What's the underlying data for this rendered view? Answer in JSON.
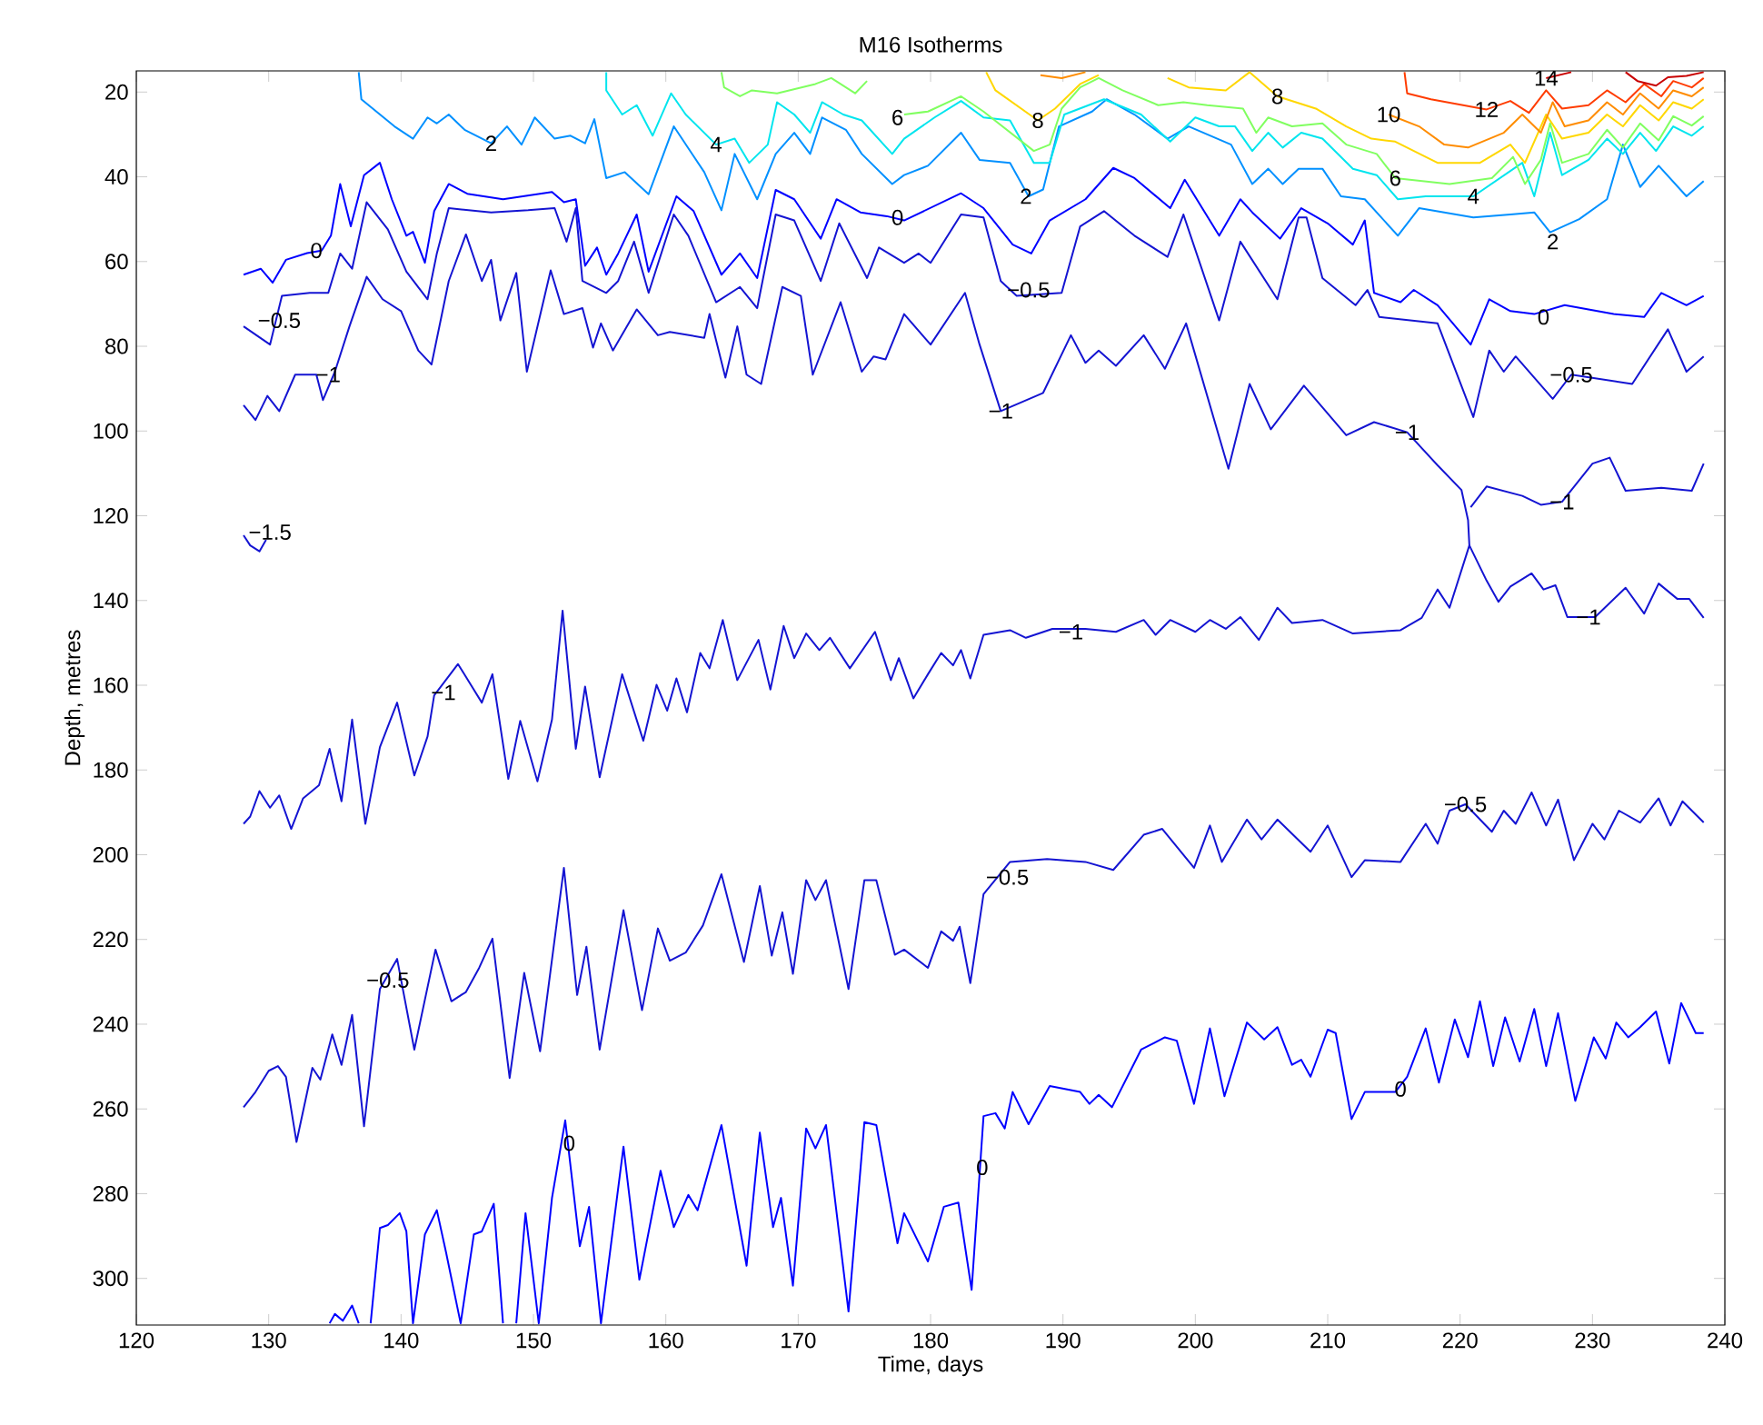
{
  "chart_data": {
    "type": "line",
    "title": "M16 Isotherms",
    "xlabel": "Time, days",
    "ylabel": "Depth, metres",
    "xlim": [
      120,
      240
    ],
    "xticks": [
      120,
      130,
      140,
      150,
      160,
      170,
      180,
      190,
      200,
      210,
      220,
      230,
      240
    ],
    "ylim": [
      311,
      15
    ],
    "yticks": [
      20,
      40,
      60,
      80,
      100,
      120,
      140,
      160,
      180,
      200,
      220,
      240,
      260,
      280,
      300
    ],
    "series": [
      {
        "color": "#0000ff",
        "x": [
          128.1,
          129.4,
          130.3,
          131.3,
          132.9,
          134,
          134.7,
          135.4,
          136.2,
          137.2,
          138.4,
          139.3,
          140.4,
          140.9,
          141.8,
          142.5,
          143.6,
          145,
          147.7,
          151.4,
          152.3,
          153.2,
          153.9,
          154.8,
          155.5,
          156.4,
          157.8,
          158.7,
          160.8,
          162.1,
          164.2,
          165.6,
          166.9,
          168.3,
          169.7,
          171.7,
          172.9,
          174.7,
          176.7,
          178,
          182.3,
          184,
          186.2,
          187.6,
          189,
          191.7,
          193.8,
          195.4,
          198.1,
          199.2,
          201.8,
          203.4,
          204.3,
          206.4,
          208,
          210,
          211.9,
          212.8,
          213.5,
          215.5,
          216.5,
          218.3,
          220.8,
          222.2,
          223.8,
          225.6,
          227.9,
          231.6,
          233.9,
          235.2,
          237.1,
          238.4
        ],
        "values": [
          63.1,
          61.7,
          65,
          59.6,
          58,
          57.4,
          53.9,
          41.7,
          51.7,
          39.6,
          36.7,
          45.3,
          53.9,
          53,
          60.3,
          48.1,
          41.7,
          44,
          45.3,
          43.6,
          46,
          45.3,
          61,
          56.7,
          63.1,
          58.1,
          48.9,
          62.4,
          44.6,
          48.1,
          63.1,
          58.1,
          63.9,
          43.1,
          45.3,
          54.6,
          45.3,
          48.4,
          49.3,
          50.3,
          43.9,
          47.4,
          56,
          58.1,
          50.3,
          45.3,
          37.9,
          40.3,
          47.4,
          40.7,
          53.9,
          45.3,
          48.4,
          54.6,
          47.4,
          51,
          56,
          50.3,
          67.4,
          69.6,
          66.7,
          70.3,
          79.6,
          68.9,
          71.7,
          72.4,
          70.3,
          72.4,
          73.1,
          67.4,
          70.3,
          68.1
        ]
      },
      {
        "color": "#1414d2",
        "x": [
          128.1,
          130.1,
          131,
          133.1,
          134.5,
          135.4,
          136.3,
          137.4,
          139,
          140.4,
          142,
          142.7,
          143.6,
          146.8,
          149.6,
          151.6,
          152.5,
          153.2,
          153.7,
          155.5,
          156.4,
          157.6,
          158.7,
          160.6,
          161.7,
          163.8,
          165.6,
          166.9,
          168.3,
          169.7,
          171.7,
          173.1,
          175.2,
          176.1,
          178,
          179.1,
          180,
          182.3,
          184,
          185.3,
          186.5,
          189.9,
          191.3,
          193.1,
          195.4,
          197.9,
          199.1,
          201.8,
          203.4,
          206.2,
          207.8,
          208.4,
          209.6,
          212.1,
          213,
          213.9,
          218.3,
          221,
          222.2,
          223.3,
          224.2,
          227,
          228.4,
          233,
          235.7,
          237.1,
          238.4
        ],
        "values": [
          75.3,
          79.6,
          68.1,
          67.4,
          67.4,
          58.1,
          61.7,
          46,
          52.4,
          62.4,
          68.9,
          58.1,
          47.4,
          48.4,
          47.9,
          47.4,
          55.3,
          47.4,
          64.6,
          67.4,
          64.6,
          55.3,
          67.4,
          48.9,
          53.9,
          69.6,
          66,
          71,
          48.9,
          50.3,
          64.6,
          51,
          63.9,
          56.7,
          60.3,
          58.1,
          60.3,
          48.9,
          49.6,
          64.6,
          68.1,
          67.4,
          51.7,
          48.1,
          53.9,
          58.9,
          48.9,
          73.9,
          55.3,
          68.9,
          49.6,
          49.6,
          63.9,
          70.3,
          66.7,
          73.1,
          74.6,
          96.7,
          81,
          86,
          82.4,
          92.4,
          86.7,
          88.9,
          76,
          86,
          82.4
        ]
      },
      {
        "color": "#1414d2",
        "x": [
          128.1,
          129,
          129.9,
          130.8,
          132,
          133.6,
          134.1,
          135,
          136.1,
          137.4,
          138.6,
          140,
          141.3,
          142.3,
          143.6,
          144.9,
          146.1,
          146.8,
          147.5,
          148.7,
          149.5,
          151.3,
          152.3,
          153.7,
          154.5,
          155.1,
          156,
          157.8,
          159.4,
          160.3,
          162.9,
          163.3,
          164.5,
          165.4,
          166.1,
          167.2,
          168.8,
          170.2,
          171.1,
          173.2,
          174.8,
          175.7,
          176.6,
          178,
          180,
          182.6,
          183.7,
          185.3,
          188.5,
          190.6,
          191.7,
          192.7,
          194,
          196.1,
          197.7,
          199.3,
          202.5,
          204.1,
          205.7,
          208.2,
          211.4,
          213.5,
          216,
          218.3,
          220.1,
          220.6,
          220.7
        ],
        "values": [
          93.9,
          97.4,
          91.7,
          95.3,
          86.7,
          86.7,
          92.7,
          86,
          75.3,
          63.6,
          68.9,
          71.7,
          81,
          84.3,
          64.6,
          53.6,
          64.6,
          59.6,
          73.9,
          62.7,
          86,
          62.1,
          72.4,
          71,
          80.3,
          74.6,
          81,
          71.3,
          77.4,
          76.6,
          78,
          72.4,
          87.4,
          75.3,
          86.7,
          88.9,
          66,
          68.1,
          86.7,
          69.6,
          86,
          82.4,
          83.1,
          72.4,
          79.6,
          67.4,
          79.6,
          95.3,
          91,
          77.4,
          83.9,
          81,
          84.6,
          77.4,
          85.3,
          74.6,
          108.9,
          88.9,
          99.6,
          89.3,
          101,
          97.9,
          100.3,
          108.1,
          113.9,
          121,
          127
        ]
      },
      {
        "color": "#1414d2",
        "x": [
          220.8,
          222,
          224.7,
          226.1,
          227.7,
          230,
          231.3,
          232.5,
          235.2,
          237.5,
          238.4
        ],
        "values": [
          118,
          113.1,
          115.3,
          117.4,
          116.7,
          107.7,
          106.3,
          114.1,
          113.4,
          114.1,
          107.7
        ]
      },
      {
        "color": "#1414d2",
        "x": [
          128.1,
          128.6,
          129.3,
          129.8
        ],
        "values": [
          124.6,
          127,
          128.4,
          125.7
        ]
      },
      {
        "color": "#1414d2",
        "x": [
          128.1,
          128.6,
          129.3,
          130.1,
          130.8,
          131.7,
          132.6,
          133.8,
          134.6,
          135.5,
          136.3,
          137.3,
          138.4,
          139.7,
          141,
          142,
          142.5,
          144.3,
          146.1,
          146.9,
          148.1,
          149,
          150.3,
          151.4,
          152.2,
          153.2,
          153.9,
          155,
          156.7,
          158.3,
          159.3,
          160.1,
          160.8,
          161.6,
          162.6,
          163.3,
          164.3,
          165.4,
          167,
          167.9,
          168.9,
          169.7,
          170.6,
          171.6,
          172.4,
          173.9,
          175.8,
          177,
          177.6,
          178.7,
          179.8,
          180.8,
          181.7,
          182.3,
          183,
          184,
          186,
          187.2,
          189.2,
          191.7,
          194,
          196.1,
          197,
          198.1,
          200,
          201.1,
          202.3,
          203.4,
          204.8,
          206.2,
          207.3,
          209.6,
          211.9,
          215.5,
          217.1,
          218.3,
          219.2,
          220.7,
          222,
          222.9,
          223.8,
          225.4,
          226.3,
          227.2,
          228.1,
          230.2,
          232.5,
          233.9,
          235,
          236.4,
          237.3,
          238.4
        ],
        "values": [
          192.7,
          191,
          185,
          188.9,
          186,
          193.9,
          186.7,
          183.6,
          175,
          187.4,
          168.1,
          192.7,
          174.6,
          164.1,
          181.3,
          172.1,
          162.4,
          155,
          164.1,
          157.4,
          182.1,
          168.4,
          182.7,
          168.1,
          142.4,
          175,
          160.3,
          181.7,
          157.4,
          173.1,
          159.9,
          166,
          158.4,
          166.4,
          152.4,
          156,
          144.6,
          158.8,
          149.3,
          161,
          146,
          153.6,
          147.8,
          151.7,
          148.8,
          156,
          147.4,
          158.8,
          153.6,
          163.1,
          157.4,
          152.4,
          155.3,
          151.7,
          158.4,
          148.1,
          147,
          148.8,
          146.7,
          146.7,
          147.4,
          144.6,
          148.1,
          144.6,
          147.4,
          144.6,
          146.7,
          143.9,
          149.3,
          141.7,
          145.3,
          144.6,
          147.8,
          147,
          144.1,
          137.4,
          141.7,
          127,
          135.3,
          140.3,
          136.7,
          133.6,
          137.4,
          136.4,
          143.9,
          143.9,
          137,
          143.1,
          136,
          139.6,
          139.6,
          144.1
        ]
      },
      {
        "color": "#1414d2",
        "x": [
          128.1,
          129,
          130,
          130.7,
          131.3,
          132.1,
          133.3,
          133.9,
          134.8,
          135.5,
          136.3,
          137.2,
          138.4,
          139.7,
          141,
          142.6,
          143.8,
          144.9,
          145.9,
          146.9,
          148.2,
          149.3,
          150.5,
          152.3,
          153.3,
          154,
          155,
          156.8,
          158.2,
          159.4,
          160.3,
          161.5,
          162.8,
          164.2,
          165.9,
          167.1,
          168,
          168.8,
          169.6,
          170.6,
          171.3,
          172.1,
          173.8,
          175,
          175.9,
          177.3,
          178,
          179.8,
          180.8,
          181.7,
          182.2,
          183,
          184,
          186,
          188.8,
          191.7,
          193.8,
          196.1,
          197.5,
          199.9,
          201.1,
          202,
          203.9,
          205,
          206.2,
          208.7,
          210,
          211.8,
          212.8,
          215.5,
          217.4,
          218.3,
          219.2,
          220.4,
          222.4,
          223.3,
          224.2,
          225.4,
          226.5,
          227.4,
          228.6,
          230,
          230.9,
          232,
          233.6,
          235,
          235.9,
          236.8,
          238.4
        ],
        "values": [
          259.6,
          256,
          251,
          249.9,
          252.4,
          267.8,
          250.3,
          253.1,
          242.4,
          249.6,
          237.8,
          264.1,
          231.7,
          224.6,
          246,
          222.4,
          234.6,
          232.4,
          226.7,
          219.8,
          252.7,
          227.9,
          246.4,
          203.1,
          233.1,
          221.7,
          246,
          213.1,
          236.7,
          217.4,
          225,
          223.1,
          216.7,
          204.6,
          225.3,
          207.4,
          223.8,
          213.6,
          228.1,
          206,
          210.7,
          206,
          231.7,
          206,
          206,
          223.6,
          222.4,
          226.7,
          218.1,
          220.3,
          217,
          230.3,
          209.3,
          201.7,
          201,
          201.7,
          203.6,
          195.3,
          193.9,
          203.1,
          193.1,
          201.7,
          191.7,
          196.4,
          191.7,
          199.3,
          193.1,
          205.3,
          201.3,
          201.7,
          192.7,
          197.4,
          189.6,
          188.1,
          194.6,
          189.6,
          192.7,
          185.3,
          193.1,
          187,
          201.3,
          192.7,
          196.4,
          189.6,
          192.4,
          186.7,
          193.1,
          187.4,
          192.4
        ]
      },
      {
        "color": "#0000ff",
        "x": [
          134.6,
          135,
          135.6,
          136.3,
          136.8,
          137.3,
          137.7,
          138.4,
          139,
          139.9,
          140.4,
          140.9,
          141.8,
          142.7,
          143.4,
          144.5,
          145.5,
          146.1,
          147,
          147.7,
          148.2,
          148.7,
          149.4,
          150.4,
          151.4,
          152.4,
          153.5,
          154.2,
          155.1,
          156.8,
          158,
          159.6,
          160.6,
          161.7,
          162.4,
          164.2,
          166.1,
          167.1,
          168.1,
          168.7,
          169.6,
          170.6,
          171.3,
          172.1,
          173.8,
          175,
          175.9,
          177.5,
          178,
          179.8,
          181,
          182.1,
          183.1,
          184,
          184.9,
          185.6,
          186.2,
          187.4,
          189,
          191.3,
          192,
          192.7,
          193.7,
          195.9,
          197.7,
          198.6,
          199.9,
          201.1,
          202.2,
          203.9,
          205.2,
          206.2,
          207.3,
          208,
          208.7,
          210,
          210.6,
          211.8,
          212.8,
          215.1,
          216,
          217.4,
          218.4,
          219.6,
          220.6,
          221.5,
          222.5,
          223.4,
          224.5,
          225.6,
          226.5,
          227.4,
          228.7,
          230.1,
          231,
          231.8,
          232.7,
          233.6,
          234.8,
          235.8,
          236.7,
          237.8,
          238.4
        ],
        "values": [
          310.6,
          308.4,
          310,
          306.4,
          310.6,
          null,
          310.6,
          288.1,
          287.4,
          284.6,
          288.9,
          310.6,
          289.6,
          283.9,
          293.9,
          310.6,
          289.6,
          288.9,
          282.4,
          310.6,
          null,
          310.6,
          284.6,
          310.6,
          281,
          262.7,
          292.4,
          283.1,
          310.6,
          268.9,
          300.3,
          274.6,
          287.9,
          280.3,
          283.9,
          263.8,
          297,
          265.6,
          287.9,
          281,
          301.7,
          264.6,
          269.3,
          263.8,
          307.8,
          263.1,
          263.8,
          291.7,
          284.6,
          296,
          283.1,
          282.1,
          302.7,
          261.7,
          261,
          264.6,
          256,
          263.6,
          254.6,
          256,
          258.8,
          256.7,
          259.6,
          246,
          243.1,
          243.9,
          258.8,
          241,
          257,
          239.6,
          243.6,
          240.7,
          249.6,
          248.4,
          252.4,
          241.3,
          242.1,
          262.4,
          256,
          256,
          252.4,
          241,
          253.8,
          238.9,
          247.8,
          234.6,
          249.9,
          238.4,
          248.8,
          236.4,
          249.9,
          237.4,
          258.1,
          243.1,
          248.1,
          239.6,
          243.1,
          240.7,
          237,
          249.3,
          235,
          242.1,
          242.1
        ]
      },
      {
        "color": "#0090ff",
        "x": [
          136.8,
          137,
          139.5,
          140.9,
          142,
          142.7,
          143.6,
          144.8,
          146.8,
          148,
          149.1,
          150.1,
          151.6,
          152.8,
          153.9,
          154.6,
          155.5,
          156.9,
          158.7,
          160.6,
          162.9,
          164.2,
          165.2,
          166.9,
          168.3,
          169.7,
          170.9,
          171.8,
          173.6,
          174.8,
          177.1,
          178,
          179.8,
          182.3,
          183.7,
          186,
          187.4,
          188.5,
          189.7,
          192.2,
          193.3,
          195.4,
          197.9,
          199.5,
          202.7,
          204.3,
          205.5,
          206.6,
          207.8,
          209.6,
          211,
          212.8,
          215.3,
          216.9,
          221,
          223.8,
          225.6,
          226.8,
          229,
          231.1,
          232.3,
          233.6,
          235,
          237.1,
          238.4
        ],
        "values": [
          15.3,
          21.7,
          28.1,
          31,
          26,
          27.4,
          25.3,
          28.9,
          32.1,
          28.1,
          32.4,
          26,
          31,
          30.3,
          32.1,
          26.4,
          40.3,
          38.9,
          44.1,
          28.1,
          38.9,
          47.9,
          34.6,
          45.3,
          34.6,
          29.6,
          34.6,
          26,
          28.9,
          34.6,
          41.7,
          39.6,
          37.4,
          29.6,
          36,
          36.7,
          44.6,
          43,
          28.1,
          24.6,
          21.7,
          25.3,
          31,
          28.1,
          32.4,
          41.7,
          38.1,
          41.7,
          38.1,
          38.1,
          44.6,
          45.3,
          53.9,
          47.4,
          49.6,
          48.9,
          48.4,
          53.1,
          50,
          45.3,
          32.4,
          42.4,
          37.4,
          44.6,
          41
        ]
      },
      {
        "color": "#00e5ee",
        "x": [
          155.5,
          155.5,
          156.7,
          157.8,
          159,
          160.4,
          161.5,
          163.8,
          165.2,
          166.3,
          167.7,
          168.4,
          169.7,
          170.9,
          171.8,
          173.4,
          174.8,
          177.1,
          178,
          180.3,
          182.3,
          184,
          186,
          187.8,
          189,
          190.1,
          193.1,
          195.9,
          198.1,
          200,
          201.8,
          203,
          204.3,
          205.5,
          206.6,
          208,
          209.6,
          211.9,
          213.7,
          215.3,
          217.4,
          221,
          224.7,
          225.6,
          226.8,
          227.7,
          229.7,
          231.1,
          232.3,
          233.6,
          234.8,
          236.1,
          237.5,
          238.4
        ],
        "values": [
          15.3,
          19.6,
          25.3,
          23.1,
          30.3,
          20.3,
          25.3,
          32.4,
          31,
          36.7,
          32.4,
          22.4,
          25.3,
          29.6,
          22.4,
          25.3,
          26.7,
          34.6,
          31,
          26,
          22.1,
          26,
          26.7,
          36.7,
          36.7,
          25.3,
          21.7,
          25.3,
          31.7,
          26,
          28.1,
          28.1,
          33.9,
          29.6,
          33.1,
          29.6,
          31,
          38.1,
          39.6,
          45.3,
          44.6,
          44.6,
          36.7,
          44.6,
          29.6,
          39.6,
          36,
          31,
          34.6,
          29.6,
          33.9,
          28.1,
          30.3,
          28.1
        ]
      },
      {
        "color": "#80ff60",
        "x": [
          164.2,
          164.4,
          165.6,
          166.5,
          168.4,
          171.3,
          172.5,
          174.3,
          175.2,
          177.5,
          178,
          179.8,
          182.3,
          184,
          187.8,
          189,
          189.9,
          191.3,
          192.7,
          194.5,
          197.2,
          199.1,
          200.9,
          203.6,
          204.6,
          205.5,
          207.3,
          209.6,
          211.4,
          213.7,
          215.1,
          219.2,
          222.4,
          224,
          224.9,
          226.1,
          226.8,
          227.7,
          229.7,
          231.1,
          232.3,
          233.6,
          235,
          236.1,
          237.5,
          238.4
        ],
        "values": [
          15.3,
          18.9,
          21,
          19.6,
          20.3,
          18.1,
          16.7,
          20.3,
          17.4,
          null,
          25.3,
          24.6,
          21,
          24.6,
          33.9,
          32.4,
          23.9,
          18.9,
          16.7,
          19.6,
          23.1,
          22.4,
          23.1,
          23.9,
          29.6,
          26,
          28.1,
          27.4,
          32.4,
          34.6,
          40.3,
          41.7,
          40.3,
          35.3,
          41.7,
          36,
          27.4,
          36.7,
          34.6,
          28.9,
          33.1,
          27.4,
          31.4,
          25.7,
          27.9,
          25.7
        ]
      },
      {
        "color": "#ffd700",
        "x": [
          184.2,
          184.9,
          188.1,
          189.4,
          191.3,
          192.7,
          195,
          197.9,
          199.5,
          202.3,
          204.1,
          206.2,
          209.1,
          211.4,
          213.3,
          215.1,
          217.4,
          218.3,
          221.5,
          223.8,
          224.9,
          226.5,
          227.7,
          229.7,
          231.1,
          232.3,
          233.6,
          235,
          236.1,
          237.5,
          238.4
        ],
        "values": [
          15.3,
          19.6,
          26.7,
          23.9,
          18.1,
          16,
          null,
          16.7,
          18.9,
          19.6,
          15.3,
          21,
          23.9,
          28.1,
          31,
          31.7,
          35.3,
          36.7,
          36.7,
          32.4,
          36.7,
          25.3,
          31,
          29.6,
          25.3,
          28.1,
          23.1,
          26.7,
          22.4,
          23.9,
          21.7
        ]
      },
      {
        "color": "#ff8c00",
        "x": [
          188.3,
          189.9,
          191.7,
          195,
          214.6,
          216.9,
          218.8,
          220.6,
          223.3,
          224.7,
          226.1,
          227,
          227.9,
          229.7,
          231.1,
          232.3,
          233.6,
          235,
          236.1,
          237.5,
          238.4
        ],
        "values": [
          16,
          16.7,
          15.3,
          null,
          25.3,
          28.1,
          32.4,
          33.1,
          29.6,
          25.3,
          29.6,
          22.4,
          28.1,
          26.7,
          22.4,
          25.3,
          20.3,
          23.9,
          19.6,
          21,
          18.9
        ]
      },
      {
        "color": "#ff3c00",
        "x": [
          215.8,
          216,
          217.8,
          222,
          223.8,
          225.2,
          226.5,
          227.7,
          229.7,
          231.1,
          232.5,
          233.9,
          235.2,
          236.1,
          237.5,
          238.4
        ],
        "values": [
          15.3,
          20.3,
          21.7,
          24.1,
          22.1,
          24.9,
          19.6,
          23.9,
          23.1,
          19.6,
          22.4,
          18.1,
          21,
          17.4,
          18.9,
          16.7
        ]
      },
      {
        "color": "#c80000",
        "x": [
          226.5,
          228.4,
          230,
          232.5,
          233.4,
          234.8,
          235.7,
          237.1,
          238.4
        ],
        "values": [
          16.7,
          15.3,
          null,
          15.3,
          17.4,
          18.5,
          16.5,
          16.2,
          15.3
        ]
      }
    ],
    "annotations": [
      {
        "text": "0",
        "x": 133.6,
        "y": 57.4
      },
      {
        "text": "−0.5",
        "x": 130.8,
        "y": 73.9
      },
      {
        "text": "−1",
        "x": 134.5,
        "y": 86.7
      },
      {
        "text": "−1.5",
        "x": 130.1,
        "y": 123.9
      },
      {
        "text": "2",
        "x": 146.8,
        "y": 32.1
      },
      {
        "text": "4",
        "x": 163.8,
        "y": 32.4
      },
      {
        "text": "6",
        "x": 177.5,
        "y": 26
      },
      {
        "text": "0",
        "x": 177.5,
        "y": 49.6
      },
      {
        "text": "8",
        "x": 188.1,
        "y": 26.7
      },
      {
        "text": "2",
        "x": 187.2,
        "y": 44.6
      },
      {
        "text": "−0.5",
        "x": 187.4,
        "y": 66.7
      },
      {
        "text": "−1",
        "x": 185.3,
        "y": 95.3
      },
      {
        "text": "8",
        "x": 206.2,
        "y": 21
      },
      {
        "text": "10",
        "x": 214.6,
        "y": 25.3
      },
      {
        "text": "12",
        "x": 222,
        "y": 24.1
      },
      {
        "text": "14",
        "x": 226.5,
        "y": 16.7
      },
      {
        "text": "6",
        "x": 215.1,
        "y": 40.3
      },
      {
        "text": "4",
        "x": 221,
        "y": 44.6
      },
      {
        "text": "2",
        "x": 227,
        "y": 55.3
      },
      {
        "text": "0",
        "x": 226.3,
        "y": 73.1
      },
      {
        "text": "−0.5",
        "x": 228.4,
        "y": 86.7
      },
      {
        "text": "−1",
        "x": 216,
        "y": 100.3
      },
      {
        "text": "−1",
        "x": 227.7,
        "y": 116.7
      },
      {
        "text": "−1",
        "x": 143.2,
        "y": 161.7
      },
      {
        "text": "−0.5",
        "x": 139,
        "y": 229.6
      },
      {
        "text": "0",
        "x": 152.7,
        "y": 268.1
      },
      {
        "text": "−1",
        "x": 190.6,
        "y": 147.4
      },
      {
        "text": "−1",
        "x": 229.7,
        "y": 143.9
      },
      {
        "text": "−0.5",
        "x": 185.8,
        "y": 205.3
      },
      {
        "text": "−0.5",
        "x": 220.4,
        "y": 188.1
      },
      {
        "text": "0",
        "x": 183.9,
        "y": 273.8
      },
      {
        "text": "0",
        "x": 215.5,
        "y": 255.3
      }
    ]
  }
}
